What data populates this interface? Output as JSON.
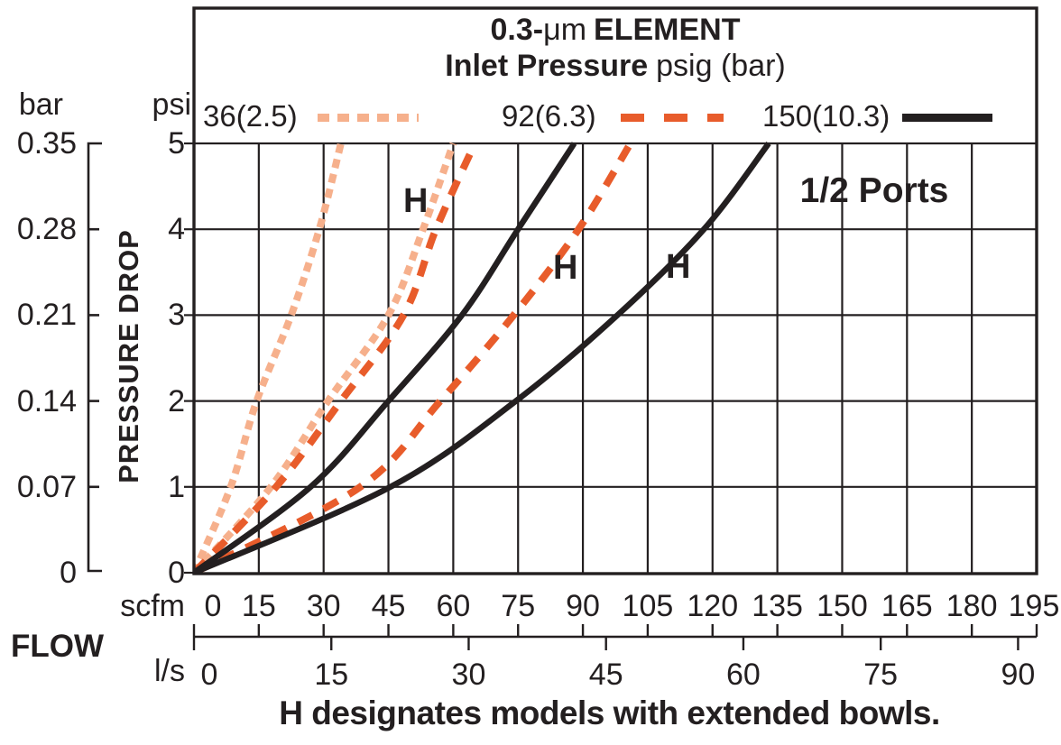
{
  "title": {
    "line1_bold1": "0.3-",
    "line1_normal": "μm",
    "line1_bold2": "ELEMENT",
    "line2_bold": "Inlet Pressure",
    "line2_normal": "psig (bar)"
  },
  "legend": [
    {
      "label": "36(2.5)",
      "color": "#F6B08C",
      "style": "dotted"
    },
    {
      "label": "92(6.3)",
      "color": "#E85C2B",
      "style": "dashed"
    },
    {
      "label": "150(10.3)",
      "color": "#231F20",
      "style": "solid"
    }
  ],
  "annotations": {
    "ports": "1/2 Ports",
    "h_labels": [
      "H",
      "H",
      "H"
    ],
    "footer": "H designates models with extended bowls."
  },
  "axes": {
    "y_left_unit": "bar",
    "y_left_ticks": [
      "0.35",
      "0.28",
      "0.21",
      "0.14",
      "0.07",
      "0"
    ],
    "y_right_unit": "psi",
    "y_right_ticks": [
      "5",
      "4",
      "3",
      "2",
      "1",
      "0"
    ],
    "y_axis_label": "PRESSURE DROP",
    "x_axis_label": "FLOW",
    "x_scfm_unit": "scfm",
    "x_scfm_ticks": [
      0,
      15,
      30,
      45,
      60,
      75,
      90,
      105,
      120,
      135,
      150,
      165,
      180,
      195
    ],
    "x_ls_unit": "l/s",
    "x_ls_ticks": [
      0,
      15,
      30,
      45,
      60,
      75,
      90
    ]
  },
  "chart_data": {
    "type": "line",
    "title": "0.3-μm ELEMENT — Inlet Pressure psig (bar)",
    "xlabel": "FLOW (scfm, with l/s conversion ruler)",
    "ylabel": "PRESSURE DROP (psi, bar)",
    "x_range_scfm": [
      0,
      195
    ],
    "y_range_psi": [
      0,
      5
    ],
    "x_gridline_step_scfm": 15,
    "y_gridline_step_psi": 1,
    "bar_per_psi_ticks": {
      "0.07": 1,
      "0.14": 2,
      "0.21": 3,
      "0.28": 4,
      "0.35": 5
    },
    "scfm_per_ls": 2.1189,
    "grid": true,
    "legend_position": "top",
    "series": [
      {
        "name": "36 psig (2.5 bar) standard",
        "inlet_psig": 36,
        "inlet_bar": 2.5,
        "model": "standard",
        "color": "#F6B08C",
        "dash": [
          10,
          7
        ],
        "width": 8,
        "points_scfm_psi": [
          [
            0,
            0
          ],
          [
            8.5,
            1
          ],
          [
            14.5,
            2
          ],
          [
            22.5,
            3
          ],
          [
            29,
            4
          ],
          [
            34,
            5
          ]
        ]
      },
      {
        "name": "36 psig (2.5 bar) H extended bowl",
        "inlet_psig": 36,
        "inlet_bar": 2.5,
        "model": "H (extended bowl)",
        "color": "#F6B08C",
        "dash": [
          10,
          7
        ],
        "width": 8,
        "points_scfm_psi": [
          [
            0,
            0
          ],
          [
            17.8,
            1
          ],
          [
            31,
            2
          ],
          [
            45,
            3
          ],
          [
            53,
            4
          ],
          [
            60,
            5
          ]
        ]
      },
      {
        "name": "92 psig (6.3 bar) standard",
        "inlet_psig": 92,
        "inlet_bar": 6.3,
        "model": "standard",
        "color": "#E85C2B",
        "dash": [
          18,
          14
        ],
        "width": 8,
        "points_scfm_psi": [
          [
            0,
            0
          ],
          [
            19,
            1
          ],
          [
            34,
            2
          ],
          [
            48.5,
            3
          ],
          [
            56,
            4
          ],
          [
            65,
            5
          ]
        ]
      },
      {
        "name": "92 psig (6.3 bar) H extended bowl",
        "inlet_psig": 92,
        "inlet_bar": 6.3,
        "model": "H (extended bowl)",
        "color": "#E85C2B",
        "dash": [
          18,
          14
        ],
        "width": 8,
        "points_scfm_psi": [
          [
            0,
            0
          ],
          [
            38.5,
            1
          ],
          [
            57,
            2
          ],
          [
            74,
            3
          ],
          [
            89,
            4
          ],
          [
            101,
            5
          ]
        ]
      },
      {
        "name": "150 psig (10.3 bar) standard",
        "inlet_psig": 150,
        "inlet_bar": 10.3,
        "model": "standard",
        "color": "#231F20",
        "dash": null,
        "width": 6.5,
        "points_scfm_psi": [
          [
            0,
            0
          ],
          [
            27,
            1
          ],
          [
            45,
            2
          ],
          [
            62,
            3
          ],
          [
            75,
            4
          ],
          [
            88,
            5
          ]
        ]
      },
      {
        "name": "150 psig (10.3 bar) H extended bowl",
        "inlet_psig": 150,
        "inlet_bar": 10.3,
        "model": "H (extended bowl)",
        "color": "#231F20",
        "dash": null,
        "width": 6.5,
        "points_scfm_psi": [
          [
            0,
            0
          ],
          [
            45.5,
            1
          ],
          [
            74.5,
            2
          ],
          [
            98,
            3
          ],
          [
            118,
            4
          ],
          [
            133,
            5
          ]
        ]
      }
    ]
  }
}
